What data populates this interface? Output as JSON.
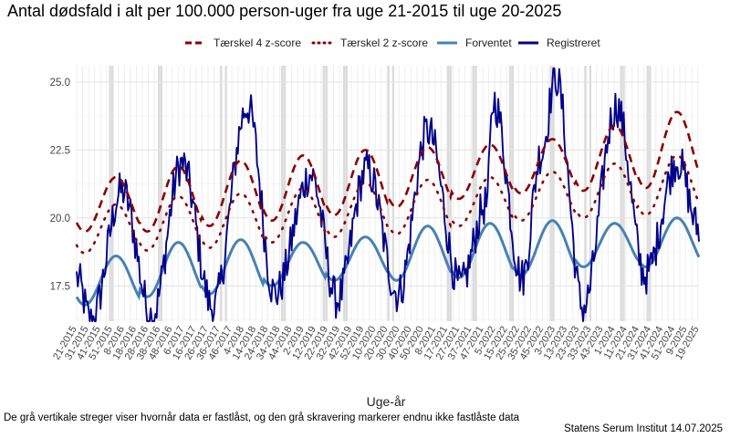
{
  "chart_data": {
    "type": "line",
    "title": "Antal dødsfald i alt per 100.000 person-uger fra uge 21-2015 til uge 20-2025",
    "xlabel": "Uge-år",
    "ylabel": "",
    "ylim": [
      16.2,
      25.6
    ],
    "y_ticks": [
      "17.5",
      "20.0",
      "22.5",
      "25.0"
    ],
    "y_tick_values": [
      17.5,
      20.0,
      22.5,
      25.0
    ],
    "x_tick_labels": [
      "21-2015",
      "31-2015",
      "41-2015",
      "51-2015",
      "8-2016",
      "18-2016",
      "28-2016",
      "38-2016",
      "48-2016",
      "6-2017",
      "16-2017",
      "26-2017",
      "36-2017",
      "46-2017",
      "4-2018",
      "14-2018",
      "24-2018",
      "34-2018",
      "44-2018",
      "2-2019",
      "12-2019",
      "22-2019",
      "32-2019",
      "42-2019",
      "52-2019",
      "10-2020",
      "20-2020",
      "30-2020",
      "40-2020",
      "50-2020",
      "8-2021",
      "17-2021",
      "27-2021",
      "37-2021",
      "47-2021",
      "5-2022",
      "15-2022",
      "25-2022",
      "35-2022",
      "45-2022",
      "3-2023",
      "13-2023",
      "23-2023",
      "33-2023",
      "43-2023",
      "1-2024",
      "11-2024",
      "21-2024",
      "31-2024",
      "41-2024",
      "51-2024",
      "9-2025",
      "19-2025"
    ],
    "grid": true,
    "legend_position": "top",
    "series": [
      {
        "name": "Tærskel 4 z-score",
        "color": "#8B0000",
        "style": "dashed",
        "annual_center": [
          20.5,
          20.7,
          20.9,
          21.1,
          21.3,
          21.5,
          21.7,
          21.9,
          22.2,
          22.5,
          22.8
        ],
        "annual_amplitude": [
          1.0,
          1.2,
          1.2,
          1.2,
          1.2,
          1.1,
          1.0,
          1.0,
          1.2,
          1.4,
          1.5
        ]
      },
      {
        "name": "Tærskel 2 z-score",
        "color": "#8B0000",
        "style": "dotted",
        "annual_center": [
          19.6,
          19.8,
          19.9,
          20.1,
          20.3,
          20.4,
          20.6,
          20.8,
          21.0,
          21.2,
          21.5
        ],
        "annual_amplitude": [
          0.9,
          1.0,
          1.0,
          1.0,
          1.0,
          1.0,
          0.9,
          0.9,
          1.0,
          1.1,
          1.2
        ]
      },
      {
        "name": "Forventet",
        "color": "#4682B4",
        "style": "solid",
        "annual_center": [
          17.7,
          18.1,
          18.2,
          18.3,
          18.5,
          18.7,
          18.8,
          18.9,
          19.0,
          19.1,
          19.3
        ],
        "annual_amplitude": [
          0.9,
          1.0,
          1.0,
          0.8,
          0.8,
          1.0,
          1.0,
          1.0,
          0.8,
          0.9,
          1.2
        ]
      },
      {
        "name": "Registreret",
        "color": "#00008B",
        "style": "solid",
        "peaks": [
          {
            "week": 38,
            "value": 21.0
          },
          {
            "week": 88,
            "value": 22.0
          },
          {
            "week": 143,
            "value": 24.1
          },
          {
            "week": 196,
            "value": 21.6
          },
          {
            "week": 243,
            "value": 21.8
          },
          {
            "week": 294,
            "value": 23.2
          },
          {
            "week": 343,
            "value": 20.5
          },
          {
            "week": 349,
            "value": 24.3
          },
          {
            "week": 389,
            "value": 22.4
          },
          {
            "week": 401,
            "value": 25.2
          },
          {
            "week": 452,
            "value": 24.1
          },
          {
            "week": 503,
            "value": 22.1
          }
        ],
        "troughs": [
          {
            "week": 12,
            "value": 16.2
          },
          {
            "week": 63,
            "value": 16.4
          },
          {
            "week": 114,
            "value": 16.7
          },
          {
            "week": 166,
            "value": 17.2
          },
          {
            "week": 218,
            "value": 17.0
          },
          {
            "week": 269,
            "value": 17.2
          },
          {
            "week": 321,
            "value": 17.5
          },
          {
            "week": 373,
            "value": 17.8
          },
          {
            "week": 424,
            "value": 16.7
          },
          {
            "week": 476,
            "value": 17.9
          }
        ],
        "final_value": 19.6
      }
    ]
  },
  "title": "Antal dødsfald i alt per 100.000 person-uger fra uge 21-2015 til uge 20-2025",
  "legend": {
    "items": [
      "Tærskel 4 z-score",
      "Tærskel 2 z-score",
      "Forventet",
      "Registreret"
    ]
  },
  "x_axis_title": "Uge-år",
  "caption": "De grå vertikale streger viser hvornår data er fastlåst, og den grå skravering markerer endnu ikke fastlåste data",
  "source": "Statens Serum Institut  14.07.2025"
}
